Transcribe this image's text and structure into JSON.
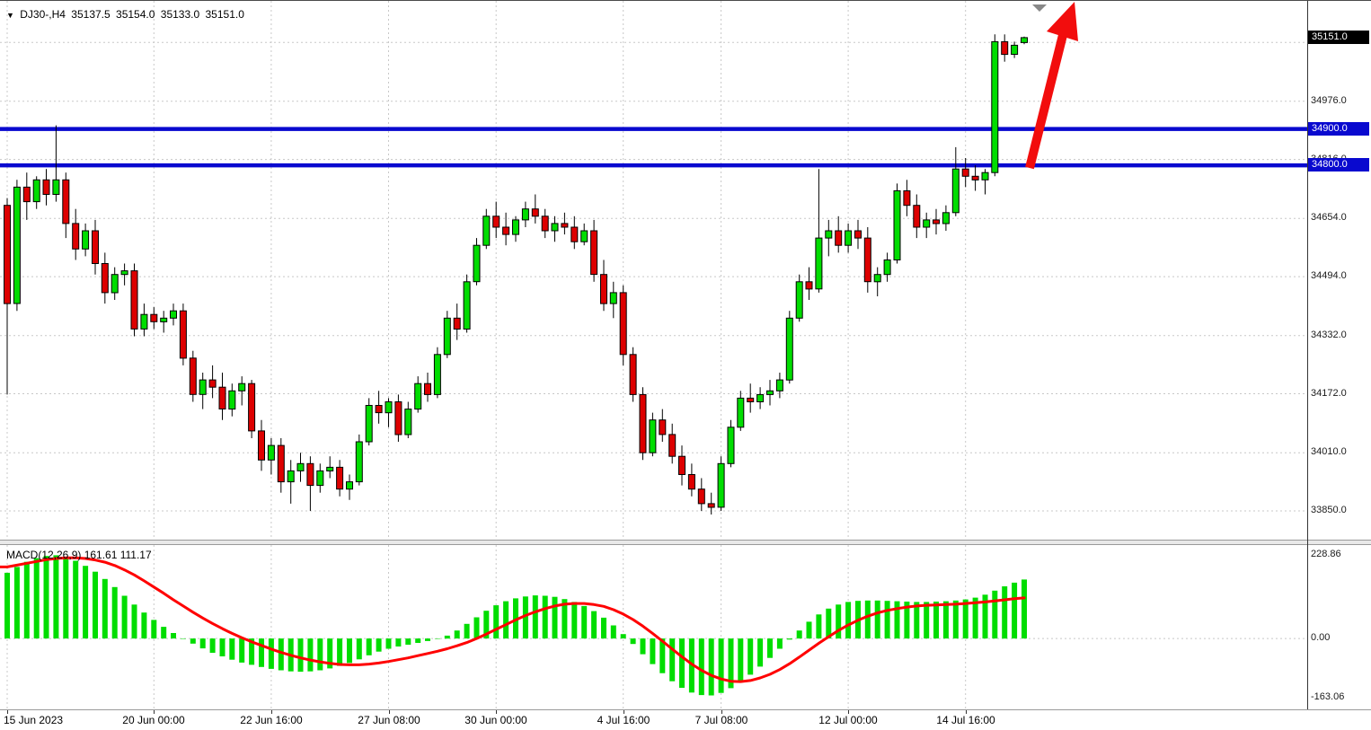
{
  "header": {
    "symbol_dropdown_icon": "▼",
    "symbol": "DJ30-,H4",
    "open": "35137.5",
    "high": "35154.0",
    "low": "35133.0",
    "close": "35151.0"
  },
  "chart_data": {
    "type": "candlestick",
    "symbol": "DJ30-",
    "timeframe": "H4",
    "ylim": [
      33771,
      35252
    ],
    "grid": true,
    "colors": {
      "up": "#00dd00",
      "down": "#dd0000",
      "wick": "#000000",
      "grid": "#c8c8c8",
      "arrow": "#f20d0d",
      "hline": "#0909cf"
    },
    "price_axis": {
      "grid_labels": [
        "35138.0",
        "34976.0",
        "34816.0",
        "34654.0",
        "34494.0",
        "34332.0",
        "34172.0",
        "34010.0",
        "33850.0"
      ],
      "grid_values": [
        35138,
        34976,
        34816,
        34654,
        34494,
        34332,
        34172,
        34010,
        33850
      ],
      "current_price": {
        "label": "35151.0",
        "value": 35151,
        "bg": "#000000",
        "fg": "#ffffff"
      }
    },
    "hlines": [
      {
        "label": "34900.0",
        "value": 34900,
        "color": "#0909cf"
      },
      {
        "label": "34800.0",
        "value": 34800,
        "color": "#0909cf"
      }
    ],
    "time_axis": [
      {
        "label": "15 Jun 2023",
        "index": 0
      },
      {
        "label": "20 Jun 00:00",
        "index": 15
      },
      {
        "label": "22 Jun 16:00",
        "index": 27
      },
      {
        "label": "27 Jun 08:00",
        "index": 39
      },
      {
        "label": "30 Jun 00:00",
        "index": 50
      },
      {
        "label": "4 Jul 16:00",
        "index": 63
      },
      {
        "label": "7 Jul 08:00",
        "index": 73
      },
      {
        "label": "12 Jul 00:00",
        "index": 86
      },
      {
        "label": "14 Jul 16:00",
        "index": 98
      }
    ],
    "candles": [
      [
        34690,
        34710,
        34170,
        34420
      ],
      [
        34420,
        34760,
        34400,
        34740
      ],
      [
        34740,
        34780,
        34650,
        34700
      ],
      [
        34700,
        34770,
        34680,
        34760
      ],
      [
        34760,
        34790,
        34690,
        34720
      ],
      [
        34720,
        34910,
        34700,
        34760
      ],
      [
        34760,
        34780,
        34600,
        34640
      ],
      [
        34640,
        34680,
        34540,
        34570
      ],
      [
        34570,
        34640,
        34550,
        34620
      ],
      [
        34620,
        34650,
        34500,
        34530
      ],
      [
        34530,
        34560,
        34420,
        34450
      ],
      [
        34450,
        34520,
        34430,
        34500
      ],
      [
        34500,
        34530,
        34470,
        34510
      ],
      [
        34510,
        34530,
        34330,
        34350
      ],
      [
        34350,
        34420,
        34330,
        34390
      ],
      [
        34390,
        34410,
        34350,
        34370
      ],
      [
        34370,
        34400,
        34340,
        34380
      ],
      [
        34380,
        34420,
        34360,
        34400
      ],
      [
        34400,
        34420,
        34250,
        34270
      ],
      [
        34270,
        34290,
        34150,
        34170
      ],
      [
        34170,
        34230,
        34130,
        34210
      ],
      [
        34210,
        34250,
        34160,
        34190
      ],
      [
        34190,
        34230,
        34100,
        34130
      ],
      [
        34130,
        34200,
        34110,
        34180
      ],
      [
        34180,
        34220,
        34140,
        34200
      ],
      [
        34200,
        34210,
        34050,
        34070
      ],
      [
        34070,
        34100,
        33960,
        33990
      ],
      [
        33990,
        34050,
        33950,
        34030
      ],
      [
        34030,
        34050,
        33900,
        33930
      ],
      [
        33930,
        33990,
        33870,
        33960
      ],
      [
        33960,
        34010,
        33930,
        33980
      ],
      [
        33980,
        34000,
        33850,
        33920
      ],
      [
        33920,
        33980,
        33900,
        33960
      ],
      [
        33960,
        34000,
        33940,
        33970
      ],
      [
        33970,
        33990,
        33890,
        33910
      ],
      [
        33910,
        33950,
        33880,
        33930
      ],
      [
        33930,
        34060,
        33920,
        34040
      ],
      [
        34040,
        34160,
        34030,
        34140
      ],
      [
        34140,
        34180,
        34090,
        34120
      ],
      [
        34120,
        34160,
        34080,
        34150
      ],
      [
        34150,
        34170,
        34040,
        34060
      ],
      [
        34060,
        34150,
        34050,
        34130
      ],
      [
        34130,
        34220,
        34120,
        34200
      ],
      [
        34200,
        34230,
        34150,
        34170
      ],
      [
        34170,
        34300,
        34160,
        34280
      ],
      [
        34280,
        34400,
        34270,
        34380
      ],
      [
        34380,
        34420,
        34320,
        34350
      ],
      [
        34350,
        34500,
        34340,
        34480
      ],
      [
        34480,
        34600,
        34470,
        34580
      ],
      [
        34580,
        34680,
        34570,
        34660
      ],
      [
        34660,
        34700,
        34600,
        34630
      ],
      [
        34630,
        34670,
        34580,
        34610
      ],
      [
        34610,
        34660,
        34590,
        34650
      ],
      [
        34650,
        34700,
        34630,
        34680
      ],
      [
        34680,
        34720,
        34640,
        34660
      ],
      [
        34660,
        34680,
        34600,
        34620
      ],
      [
        34620,
        34660,
        34590,
        34640
      ],
      [
        34640,
        34670,
        34610,
        34630
      ],
      [
        34630,
        34660,
        34570,
        34590
      ],
      [
        34590,
        34640,
        34580,
        34620
      ],
      [
        34620,
        34650,
        34480,
        34500
      ],
      [
        34500,
        34540,
        34400,
        34420
      ],
      [
        34420,
        34480,
        34380,
        34450
      ],
      [
        34450,
        34470,
        34250,
        34280
      ],
      [
        34280,
        34300,
        34150,
        34170
      ],
      [
        34170,
        34190,
        33990,
        34010
      ],
      [
        34010,
        34120,
        34000,
        34100
      ],
      [
        34100,
        34130,
        34040,
        34060
      ],
      [
        34060,
        34090,
        33980,
        34000
      ],
      [
        34000,
        34030,
        33920,
        33950
      ],
      [
        33950,
        33980,
        33890,
        33910
      ],
      [
        33910,
        33940,
        33850,
        33870
      ],
      [
        33870,
        33900,
        33840,
        33860
      ],
      [
        33860,
        34000,
        33850,
        33980
      ],
      [
        33980,
        34100,
        33970,
        34080
      ],
      [
        34080,
        34180,
        34070,
        34160
      ],
      [
        34160,
        34200,
        34120,
        34150
      ],
      [
        34150,
        34190,
        34130,
        34170
      ],
      [
        34170,
        34210,
        34140,
        34180
      ],
      [
        34180,
        34230,
        34160,
        34210
      ],
      [
        34210,
        34400,
        34200,
        34380
      ],
      [
        34380,
        34500,
        34370,
        34480
      ],
      [
        34480,
        34520,
        34430,
        34460
      ],
      [
        34460,
        34790,
        34450,
        34600
      ],
      [
        34600,
        34650,
        34550,
        34620
      ],
      [
        34620,
        34660,
        34560,
        34580
      ],
      [
        34580,
        34640,
        34560,
        34620
      ],
      [
        34620,
        34650,
        34570,
        34600
      ],
      [
        34600,
        34630,
        34450,
        34480
      ],
      [
        34480,
        34520,
        34440,
        34500
      ],
      [
        34500,
        34560,
        34480,
        34540
      ],
      [
        34540,
        34750,
        34530,
        34730
      ],
      [
        34730,
        34760,
        34660,
        34690
      ],
      [
        34690,
        34720,
        34600,
        34630
      ],
      [
        34630,
        34670,
        34600,
        34650
      ],
      [
        34650,
        34680,
        34610,
        34640
      ],
      [
        34640,
        34690,
        34620,
        34670
      ],
      [
        34670,
        34850,
        34660,
        34790
      ],
      [
        34790,
        34820,
        34740,
        34770
      ],
      [
        34770,
        34800,
        34730,
        34760
      ],
      [
        34760,
        34790,
        34720,
        34780
      ],
      [
        34780,
        35160,
        34770,
        35140
      ],
      [
        35140,
        35160,
        35085,
        35105
      ],
      [
        35105,
        35140,
        35095,
        35130
      ],
      [
        35137.5,
        35154,
        35133,
        35151
      ]
    ],
    "macd": {
      "label": "MACD(12,26,9) 161.61 111.17",
      "ylim": [
        -194,
        256
      ],
      "axis_labels": [
        {
          "label": "228.86",
          "value": 228.86
        },
        {
          "label": "0.00",
          "value": 0
        },
        {
          "label": "-163.06",
          "value": -163.06
        }
      ],
      "histogram_color": "#00dd00",
      "signal_color": "#ff0000",
      "histogram": [
        180,
        196,
        210,
        220,
        226,
        228,
        223,
        213,
        199,
        183,
        163,
        141,
        117,
        93,
        71,
        51,
        32,
        15,
        0,
        -14,
        -27,
        -39,
        -49,
        -58,
        -66,
        -72,
        -78,
        -83,
        -87,
        -90,
        -91,
        -90,
        -87,
        -82,
        -75,
        -67,
        -57,
        -46,
        -36,
        -28,
        -22,
        -17,
        -12,
        -7,
        -1,
        8,
        22,
        40,
        58,
        76,
        91,
        102,
        110,
        115,
        118,
        117,
        114,
        108,
        100,
        89,
        75,
        57,
        36,
        12,
        -15,
        -43,
        -70,
        -95,
        -117,
        -135,
        -148,
        -155,
        -156,
        -149,
        -136,
        -119,
        -99,
        -77,
        -53,
        -28,
        -3,
        22,
        46,
        66,
        82,
        93,
        100,
        103,
        104,
        104,
        103,
        102,
        101,
        100,
        100,
        101,
        102,
        104,
        107,
        112,
        120,
        131,
        143,
        153,
        161.61
      ],
      "signal": [
        196,
        201,
        206,
        211,
        216,
        219,
        221,
        221,
        219,
        215,
        209,
        200,
        188,
        174,
        158,
        141,
        124,
        106,
        89,
        72,
        56,
        41,
        27,
        14,
        2,
        -9,
        -19,
        -29,
        -38,
        -46,
        -53,
        -59,
        -64,
        -68,
        -71,
        -72,
        -72,
        -70,
        -67,
        -63,
        -58,
        -53,
        -47,
        -41,
        -35,
        -28,
        -20,
        -11,
        0,
        12,
        25,
        38,
        51,
        63,
        73,
        82,
        89,
        94,
        96,
        96,
        93,
        88,
        79,
        67,
        52,
        34,
        14,
        -7,
        -29,
        -50,
        -70,
        -87,
        -101,
        -111,
        -117,
        -118,
        -115,
        -108,
        -98,
        -85,
        -69,
        -51,
        -32,
        -13,
        5,
        22,
        37,
        50,
        61,
        70,
        77,
        82,
        86,
        89,
        91,
        92,
        93,
        94,
        96,
        98,
        100,
        103,
        106,
        109,
        111.17
      ]
    }
  }
}
